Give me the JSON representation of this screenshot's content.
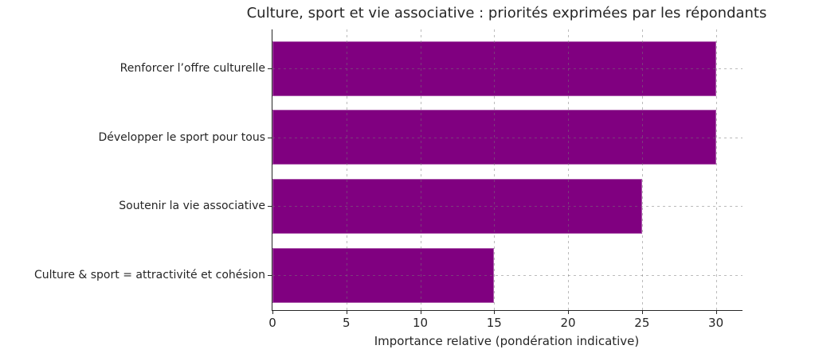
{
  "chart_data": {
    "type": "bar",
    "orientation": "horizontal",
    "title": "Culture, sport et vie associative : priorités exprimées par les répondants",
    "xlabel": "Importance relative (pondération indicative)",
    "categories": [
      "Renforcer l’offre culturelle",
      "Développer le sport pour tous",
      "Soutenir la vie associative",
      "Culture & sport = attractivité et cohésion"
    ],
    "values": [
      30,
      30,
      25,
      15
    ],
    "xticks": [
      0,
      5,
      10,
      15,
      20,
      25,
      30
    ],
    "xlim": [
      0,
      31.8
    ],
    "bar_color": "#800080",
    "grid": {
      "style": "dashed",
      "color_on_white": "#d4d4d4",
      "drawn_over_bars": true
    },
    "legend_position": "none"
  }
}
